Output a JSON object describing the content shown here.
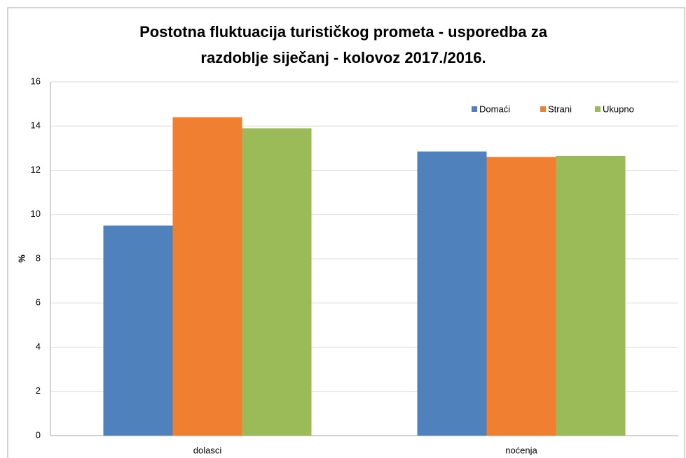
{
  "chart_data": {
    "type": "bar",
    "title": [
      "Postotna fluktuacija turističkog prometa - usporedba za",
      "razdoblje siječanj - kolovoz 2017./2016."
    ],
    "y_label": "%",
    "categories": [
      "dolasci",
      "noćenja"
    ],
    "series": [
      {
        "name": "Domaći",
        "color": "#4f81bd",
        "values": [
          9.5,
          12.85
        ]
      },
      {
        "name": "Strani",
        "color": "#f07f32",
        "values": [
          14.4,
          12.6
        ]
      },
      {
        "name": "Ukupno",
        "color": "#9bbb59",
        "values": [
          13.9,
          12.65
        ]
      }
    ],
    "ylim": [
      0,
      16
    ],
    "yticks": [
      0,
      2,
      4,
      6,
      8,
      10,
      12,
      14,
      16
    ],
    "grid": true,
    "legend": "top-right"
  }
}
